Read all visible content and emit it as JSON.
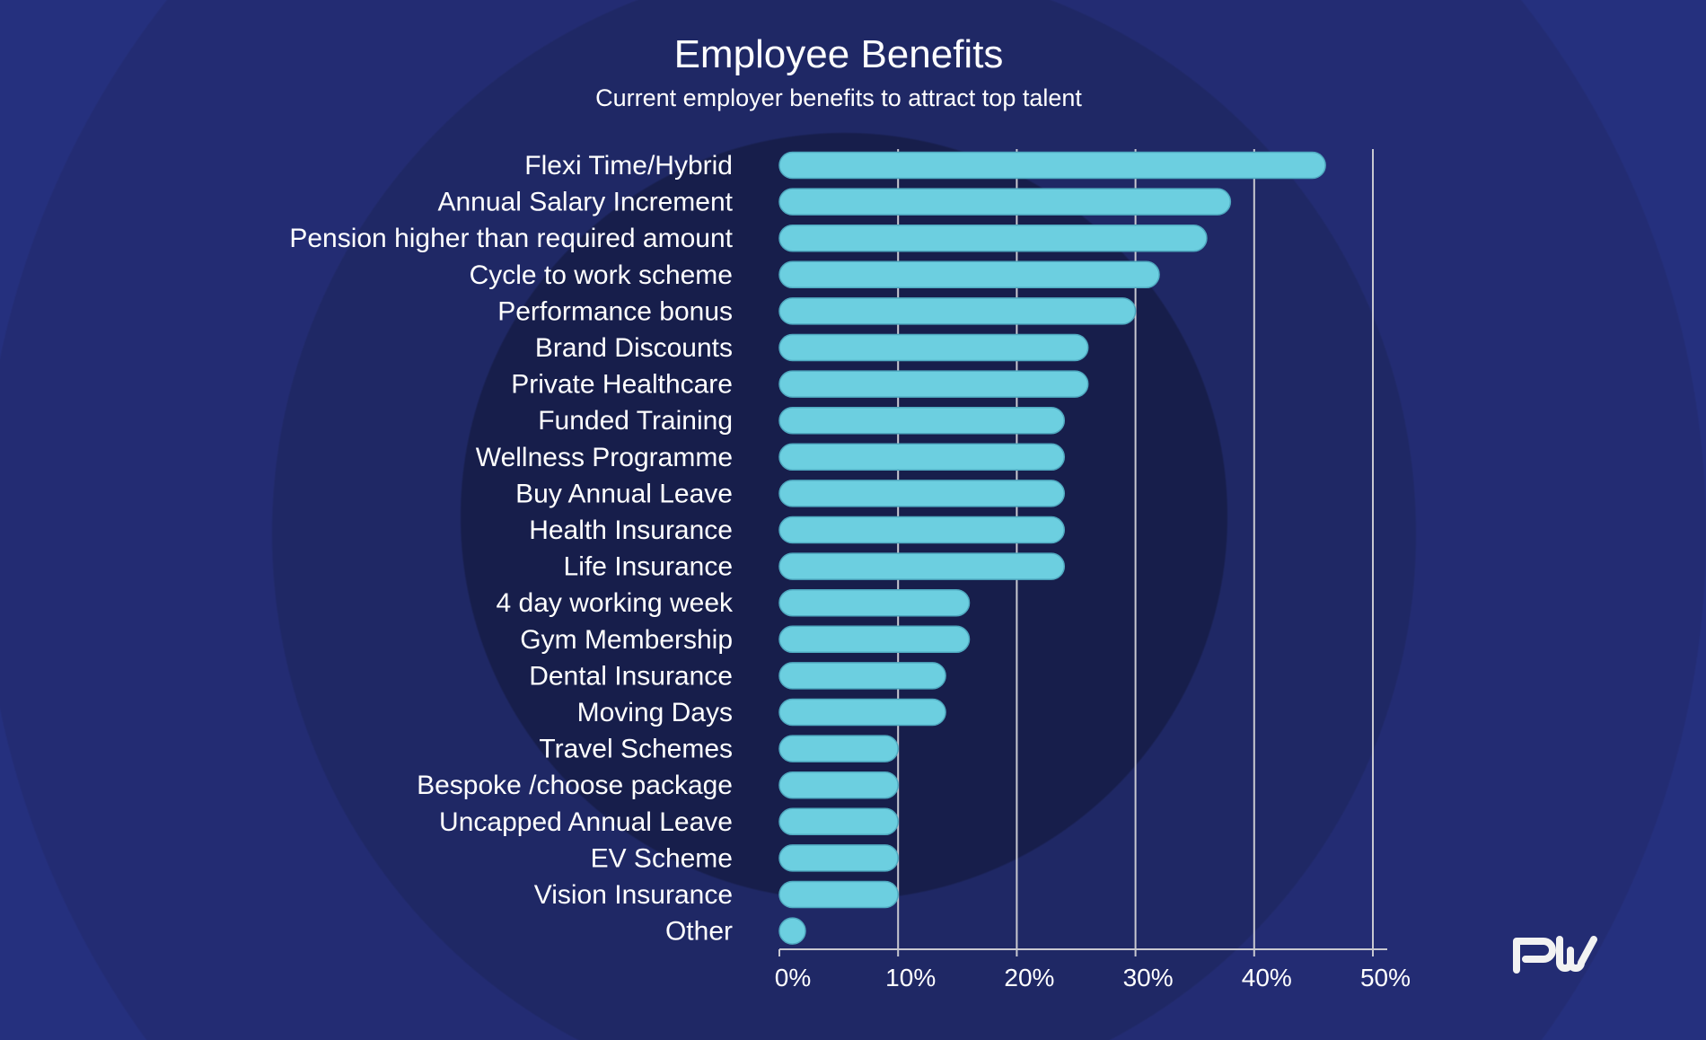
{
  "chart_data": {
    "type": "bar",
    "orientation": "horizontal",
    "title": "Employee Benefits",
    "subtitle": "Current employer benefits to attract top talent",
    "categories": [
      "Flexi Time/Hybrid",
      "Annual Salary Increment",
      "Pension higher than required amount",
      "Cycle to work scheme",
      "Performance bonus",
      "Brand Discounts",
      "Private Healthcare",
      "Funded Training",
      "Wellness Programme",
      "Buy Annual Leave",
      "Health Insurance",
      "Life Insurance",
      "4 day working week",
      "Gym Membership",
      "Dental Insurance",
      "Moving Days",
      "Travel Schemes",
      "Bespoke /choose package",
      "Uncapped Annual Leave",
      "EV Scheme",
      "Vision Insurance",
      "Other"
    ],
    "values": [
      46,
      38,
      36,
      32,
      30,
      26,
      26,
      24,
      24,
      24,
      24,
      24,
      16,
      16,
      14,
      14,
      10,
      10,
      10,
      10,
      10,
      2
    ],
    "unit": "%",
    "xlim": [
      0,
      50
    ],
    "xticks": [
      "0%",
      "10%",
      "20%",
      "30%",
      "40%",
      "50%"
    ],
    "grid": true,
    "bar_color": "#6ccfe0",
    "background_color": "#25307e"
  },
  "logo": {
    "text": "PW"
  }
}
